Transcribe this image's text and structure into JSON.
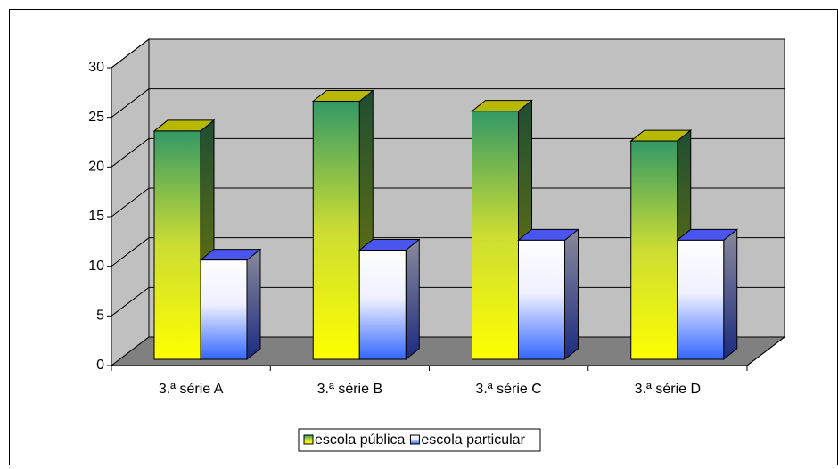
{
  "chart_data": {
    "type": "bar3d",
    "categories": [
      "3.ª série A",
      "3.ª série B",
      "3.ª série C",
      "3.ª série D"
    ],
    "series": [
      {
        "name": "escola pública",
        "color": "#ffff00",
        "values": [
          23,
          26,
          25,
          22
        ]
      },
      {
        "name": "escola particular",
        "color": "#3366ff",
        "values": [
          10,
          11,
          12,
          12
        ]
      }
    ],
    "ylim": [
      0,
      30
    ],
    "yticks": [
      0,
      5,
      10,
      15,
      20,
      25,
      30
    ],
    "grid": true,
    "legend": "bottom"
  }
}
